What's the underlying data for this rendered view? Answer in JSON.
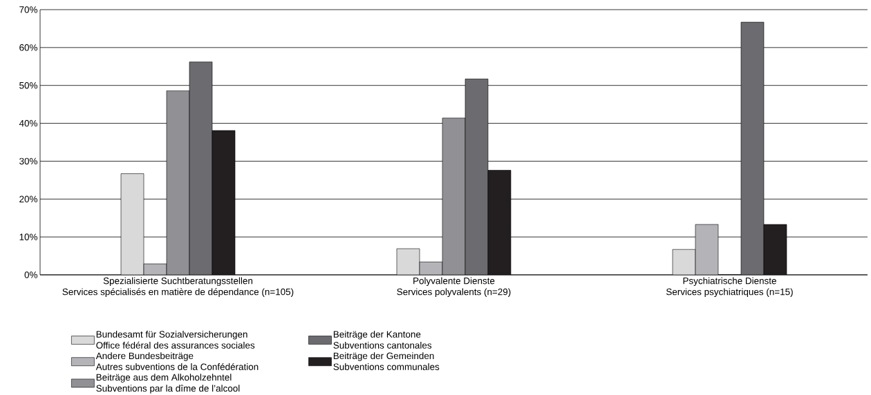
{
  "chart_data": {
    "type": "bar",
    "categories": [
      "Spezialisierte Suchtberatungsstellen\nServices spécialisés en matière de dépendance (n=105)",
      "Polyvalente Dienste\nServices polyvalents (n=29)",
      "Psychiatrische Dienste\nServices psychiatriques (n=15)"
    ],
    "series": [
      {
        "name": "Bundesamt für Sozialversicherungen\nOffice fédéral des assurances sociales",
        "color": "#d9d9d9",
        "values": [
          26.7,
          6.9,
          6.7
        ]
      },
      {
        "name": "Andere Bundesbeiträge\nAutres subventions de la Confédération",
        "color": "#b4b4b8",
        "values": [
          2.9,
          3.4,
          13.3
        ]
      },
      {
        "name": "Beiträge aus dem Alkoholzehntel\nSubventions par la dîme de l’alcool",
        "color": "#919195",
        "values": [
          48.6,
          41.4,
          0
        ]
      },
      {
        "name": "Beiträge der Kantone\nSubventions cantonales",
        "color": "#6b6b70",
        "values": [
          56.2,
          51.7,
          66.7
        ]
      },
      {
        "name": "Beiträge der Gemeinden\nSubventions communales",
        "color": "#231f20",
        "values": [
          38.1,
          27.6,
          13.3
        ]
      }
    ],
    "ylim": [
      0,
      70
    ],
    "yticks": [
      {
        "value": 0,
        "label": "0%"
      },
      {
        "value": 10,
        "label": "10%"
      },
      {
        "value": 20,
        "label": "20%"
      },
      {
        "value": 30,
        "label": "30%"
      },
      {
        "value": 40,
        "label": "40%"
      },
      {
        "value": 50,
        "label": "50%"
      },
      {
        "value": 60,
        "label": "60%"
      },
      {
        "value": 70,
        "label": "70%"
      }
    ],
    "grid": "y",
    "legend": "bottom"
  }
}
